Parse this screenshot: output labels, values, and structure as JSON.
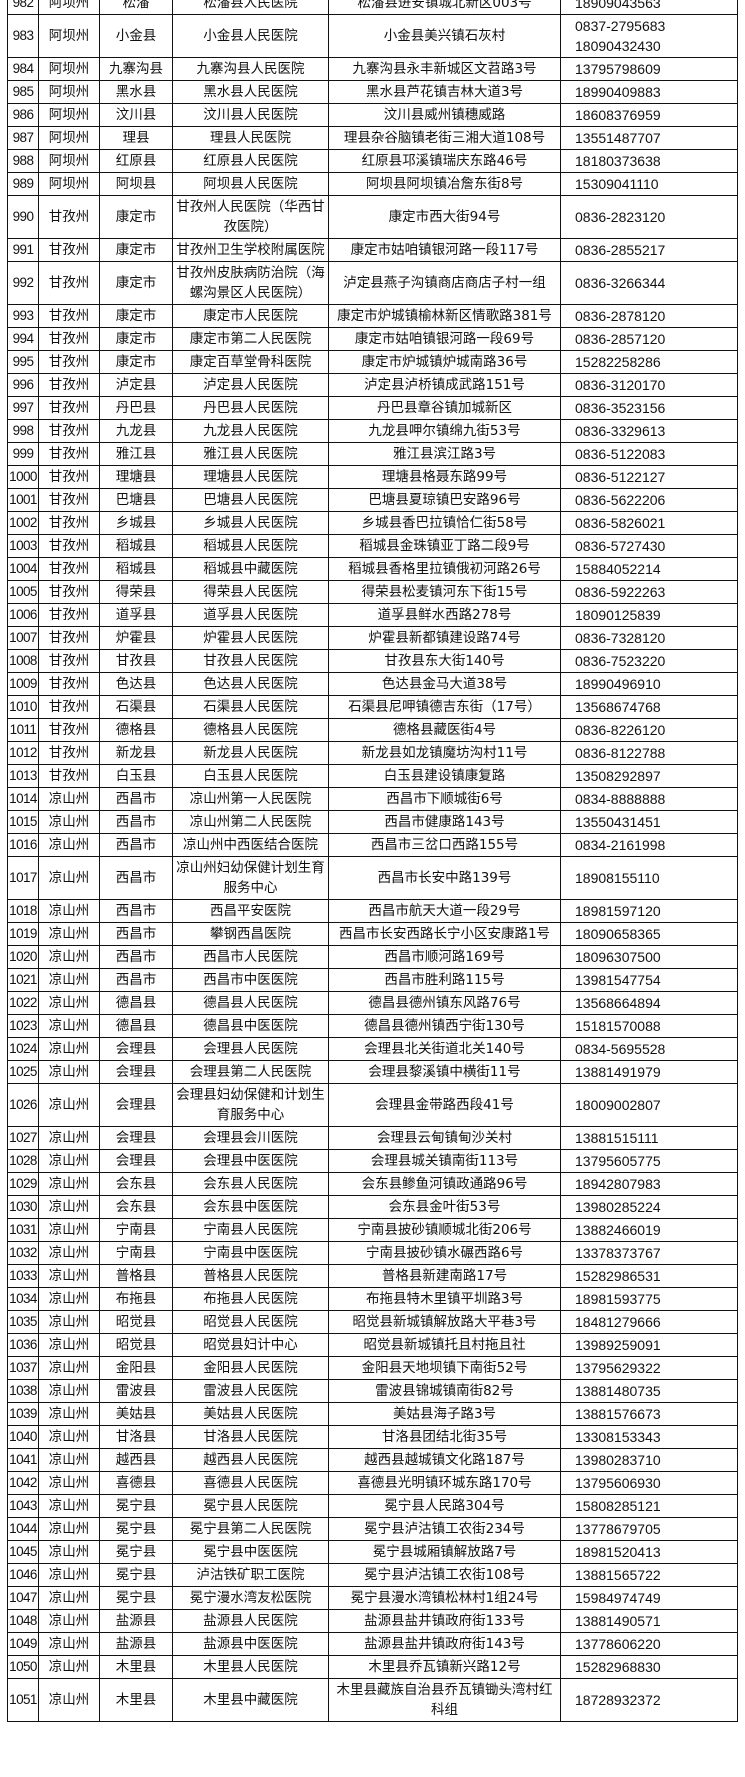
{
  "rows": [
    [
      "982",
      "阿坝州",
      "松潘",
      "松潘县人民医院",
      "松潘县进安镇城北新区003号",
      "18909043563"
    ],
    [
      "983",
      "阿坝州",
      "小金县",
      "小金县人民医院",
      "小金县美兴镇石灰村",
      "0837-2795683\n18090432430"
    ],
    [
      "984",
      "阿坝州",
      "九寨沟县",
      "九寨沟县人民医院",
      "九寨沟县永丰新城区文苕路3号",
      "13795798609"
    ],
    [
      "985",
      "阿坝州",
      "黑水县",
      "黑水县人民医院",
      "黑水县芦花镇吉林大道3号",
      "18990409883"
    ],
    [
      "986",
      "阿坝州",
      "汶川县",
      "汶川县人民医院",
      "汶川县威州镇穗威路",
      "18608376959"
    ],
    [
      "987",
      "阿坝州",
      "理县",
      "理县人民医院",
      "理县杂谷脑镇老街三湘大道108号",
      "13551487707"
    ],
    [
      "988",
      "阿坝州",
      "红原县",
      "红原县人民医院",
      "红原县邛溪镇瑞庆东路46号",
      "18180373638"
    ],
    [
      "989",
      "阿坝州",
      "阿坝县",
      "阿坝县人民医院",
      "阿坝县阿坝镇冶詹东街8号",
      "15309041110"
    ],
    [
      "990",
      "甘孜州",
      "康定市",
      "甘孜州人民医院（华西甘孜医院）",
      "康定市西大街94号",
      "0836-2823120"
    ],
    [
      "991",
      "甘孜州",
      "康定市",
      "甘孜州卫生学校附属医院",
      "康定市姑咱镇银河路一段117号",
      "0836-2855217"
    ],
    [
      "992",
      "甘孜州",
      "康定市",
      "甘孜州皮肤病防治院（海螺沟景区人民医院）",
      "泸定县燕子沟镇商店商店子村一组",
      "0836-3266344"
    ],
    [
      "993",
      "甘孜州",
      "康定市",
      "康定市人民医院",
      "康定市炉城镇榆林新区情歌路381号",
      "0836-2878120"
    ],
    [
      "994",
      "甘孜州",
      "康定市",
      "康定市第二人民医院",
      "康定市姑咱镇银河路一段69号",
      "0836-2857120"
    ],
    [
      "995",
      "甘孜州",
      "康定市",
      "康定百草堂骨科医院",
      "康定市炉城镇炉城南路36号",
      "15282258286"
    ],
    [
      "996",
      "甘孜州",
      "泸定县",
      "泸定县人民医院",
      "泸定县泸桥镇成武路151号",
      "0836-3120170"
    ],
    [
      "997",
      "甘孜州",
      "丹巴县",
      "丹巴县人民医院",
      "丹巴县章谷镇加城新区",
      "0836-3523156"
    ],
    [
      "998",
      "甘孜州",
      "九龙县",
      "九龙县人民医院",
      "九龙县呷尔镇绵九街53号",
      "0836-3329613"
    ],
    [
      "999",
      "甘孜州",
      "雅江县",
      "雅江县人民医院",
      "雅江县滨江路3号",
      "0836-5122083"
    ],
    [
      "1000",
      "甘孜州",
      "理塘县",
      "理塘县人民医院",
      "理塘县格聂东路99号",
      "0836-5122127"
    ],
    [
      "1001",
      "甘孜州",
      "巴塘县",
      "巴塘县人民医院",
      "巴塘县夏琼镇巴安路96号",
      "0836-5622206"
    ],
    [
      "1002",
      "甘孜州",
      "乡城县",
      "乡城县人民医院",
      "乡城县香巴拉镇恰仁街58号",
      "0836-5826021"
    ],
    [
      "1003",
      "甘孜州",
      "稻城县",
      "稻城县人民医院",
      "稻城县金珠镇亚丁路二段9号",
      "0836-5727430"
    ],
    [
      "1004",
      "甘孜州",
      "稻城县",
      "稻城县中藏医院",
      "稻城县香格里拉镇俄初河路26号",
      "15884052214"
    ],
    [
      "1005",
      "甘孜州",
      "得荣县",
      "得荣县人民医院",
      "得荣县松麦镇河东下街15号",
      "0836-5922263"
    ],
    [
      "1006",
      "甘孜州",
      "道孚县",
      "道孚县人民医院",
      "道孚县鲜水西路278号",
      "18090125839"
    ],
    [
      "1007",
      "甘孜州",
      "炉霍县",
      "炉霍县人民医院",
      "炉霍县新都镇建设路74号",
      "0836-7328120"
    ],
    [
      "1008",
      "甘孜州",
      "甘孜县",
      "甘孜县人民医院",
      "甘孜县东大街140号",
      "0836-7523220"
    ],
    [
      "1009",
      "甘孜州",
      "色达县",
      "色达县人民医院",
      "色达县金马大道38号",
      "18990496910"
    ],
    [
      "1010",
      "甘孜州",
      "石渠县",
      "石渠县人民医院",
      "石渠县尼呷镇德吉东街（17号）",
      "13568674768"
    ],
    [
      "1011",
      "甘孜州",
      "德格县",
      "德格县人民医院",
      "德格县藏医街4号",
      "0836-8226120"
    ],
    [
      "1012",
      "甘孜州",
      "新龙县",
      "新龙县人民医院",
      "新龙县如龙镇魔坊沟村11号",
      "0836-8122788"
    ],
    [
      "1013",
      "甘孜州",
      "白玉县",
      "白玉县人民医院",
      "白玉县建设镇康复路",
      "13508292897"
    ],
    [
      "1014",
      "凉山州",
      "西昌市",
      "凉山州第一人民医院",
      "西昌市下顺城街6号",
      "0834-8888888"
    ],
    [
      "1015",
      "凉山州",
      "西昌市",
      "凉山州第二人民医院",
      "西昌市健康路143号",
      "13550431451"
    ],
    [
      "1016",
      "凉山州",
      "西昌市",
      "凉山州中西医结合医院",
      "西昌市三岔口西路155号",
      "0834-2161998"
    ],
    [
      "1017",
      "凉山州",
      "西昌市",
      "凉山州妇幼保健计划生育服务中心",
      "西昌市长安中路139号",
      "18908155110"
    ],
    [
      "1018",
      "凉山州",
      "西昌市",
      "西昌平安医院",
      "西昌市航天大道一段29号",
      "18981597120"
    ],
    [
      "1019",
      "凉山州",
      "西昌市",
      "攀钢西昌医院",
      "西昌市长安西路长宁小区安康路1号",
      "18090658365"
    ],
    [
      "1020",
      "凉山州",
      "西昌市",
      "西昌市人民医院",
      "西昌市顺河路169号",
      "18096307500"
    ],
    [
      "1021",
      "凉山州",
      "西昌市",
      "西昌市中医医院",
      "西昌市胜利路115号",
      "13981547754"
    ],
    [
      "1022",
      "凉山州",
      "德昌县",
      "德昌县人民医院",
      "德昌县德州镇东风路76号",
      "13568664894"
    ],
    [
      "1023",
      "凉山州",
      "德昌县",
      "德昌县中医医院",
      "德昌县德州镇西宁街130号",
      "15181570088"
    ],
    [
      "1024",
      "凉山州",
      "会理县",
      "会理县人民医院",
      "会理县北关街道北关140号",
      "0834-5695528"
    ],
    [
      "1025",
      "凉山州",
      "会理县",
      "会理县第二人民医院",
      "会理县黎溪镇中横街11号",
      "13881491979"
    ],
    [
      "1026",
      "凉山州",
      "会理县",
      "会理县妇幼保健和计划生育服务中心",
      "会理县金带路西段41号",
      "18009002807"
    ],
    [
      "1027",
      "凉山州",
      "会理县",
      "会理县会川医院",
      "会理县云甸镇甸沙关村",
      "13881515111"
    ],
    [
      "1028",
      "凉山州",
      "会理县",
      "会理县中医医院",
      "会理县城关镇南街113号",
      "13795605775"
    ],
    [
      "1029",
      "凉山州",
      "会东县",
      "会东县人民医院",
      "会东县鲹鱼河镇政通路96号",
      "18942807983"
    ],
    [
      "1030",
      "凉山州",
      "会东县",
      "会东县中医医院",
      "会东县金叶街53号",
      "13980285224"
    ],
    [
      "1031",
      "凉山州",
      "宁南县",
      "宁南县人民医院",
      "宁南县披砂镇顺城北街206号",
      "13882466019"
    ],
    [
      "1032",
      "凉山州",
      "宁南县",
      "宁南县中医医院",
      "宁南县披砂镇水碾西路6号",
      "13378373767"
    ],
    [
      "1033",
      "凉山州",
      "普格县",
      "普格县人民医院",
      "普格县新建南路17号",
      "15282986531"
    ],
    [
      "1034",
      "凉山州",
      "布拖县",
      "布拖县人民医院",
      "布拖县特木里镇平圳路3号",
      "18981593775"
    ],
    [
      "1035",
      "凉山州",
      "昭觉县",
      "昭觉县人民医院",
      "昭觉县新城镇解放路大平巷3号",
      "18481279666"
    ],
    [
      "1036",
      "凉山州",
      "昭觉县",
      "昭觉县妇计中心",
      "昭觉县新城镇托且村拖且社",
      "13989259091"
    ],
    [
      "1037",
      "凉山州",
      "金阳县",
      "金阳县人民医院",
      "金阳县天地坝镇下南街52号",
      "13795629322"
    ],
    [
      "1038",
      "凉山州",
      "雷波县",
      "雷波县人民医院",
      "雷波县锦城镇南街82号",
      "13881480735"
    ],
    [
      "1039",
      "凉山州",
      "美姑县",
      "美姑县人民医院",
      "美姑县海子路3号",
      "13881576673"
    ],
    [
      "1040",
      "凉山州",
      "甘洛县",
      "甘洛县人民医院",
      "甘洛县团结北街35号",
      "13308153343"
    ],
    [
      "1041",
      "凉山州",
      "越西县",
      "越西县人民医院",
      "越西县越城镇文化路187号",
      "13980283710"
    ],
    [
      "1042",
      "凉山州",
      "喜德县",
      "喜德县人民医院",
      "喜德县光明镇环城东路170号",
      "13795606930"
    ],
    [
      "1043",
      "凉山州",
      "冕宁县",
      "冕宁县人民医院",
      "冕宁县人民路304号",
      "15808285121"
    ],
    [
      "1044",
      "凉山州",
      "冕宁县",
      "冕宁县第二人民医院",
      "冕宁县泸沽镇工农街234号",
      "13778679705"
    ],
    [
      "1045",
      "凉山州",
      "冕宁县",
      "冕宁县中医医院",
      "冕宁县城厢镇解放路7号",
      "18981520413"
    ],
    [
      "1046",
      "凉山州",
      "冕宁县",
      "泸沽铁矿职工医院",
      "冕宁县泸沽镇工农街108号",
      "13881565722"
    ],
    [
      "1047",
      "凉山州",
      "冕宁县",
      "冕宁漫水湾友松医院",
      "冕宁县漫水湾镇松林村1组24号",
      "15984974749"
    ],
    [
      "1048",
      "凉山州",
      "盐源县",
      "盐源县人民医院",
      "盐源县盐井镇政府街133号",
      "13881490571"
    ],
    [
      "1049",
      "凉山州",
      "盐源县",
      "盐源县中医医院",
      "盐源县盐井镇政府街143号",
      "13778606220"
    ],
    [
      "1050",
      "凉山州",
      "木里县",
      "木里县人民医院",
      "木里县乔瓦镇新兴路12号",
      "15282968830"
    ],
    [
      "1051",
      "凉山州",
      "木里县",
      "木里县中藏医院",
      "木里县藏族自治县乔瓦镇锄头湾村红科组",
      "18728932372"
    ]
  ]
}
